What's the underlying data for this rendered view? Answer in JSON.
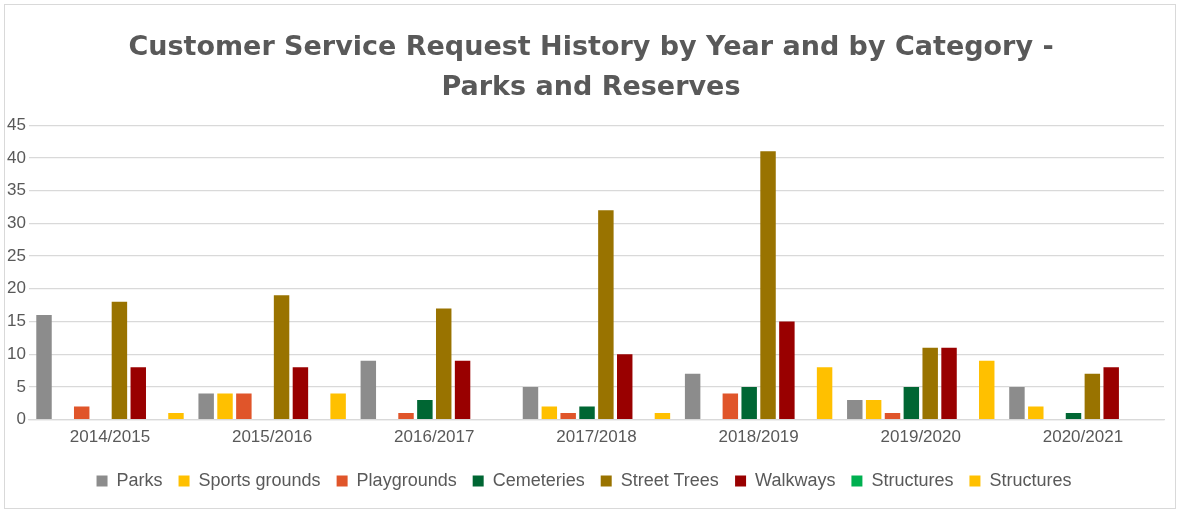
{
  "chart_data": {
    "type": "bar",
    "title": "Customer Service Request History by Year and by Category - Parks and Reserves",
    "categories": [
      "2014/2015",
      "2015/2016",
      "2016/2017",
      "2017/2018",
      "2018/2019",
      "2019/2020",
      "2020/2021"
    ],
    "series": [
      {
        "name": "Parks",
        "color": "#8c8c8c",
        "values": [
          16,
          4,
          9,
          5,
          7,
          3,
          5
        ]
      },
      {
        "name": "Sports grounds",
        "color": "#ffc000",
        "values": [
          null,
          4,
          null,
          2,
          null,
          3,
          2
        ]
      },
      {
        "name": "Playgrounds",
        "color": "#e0552a",
        "values": [
          2,
          4,
          1,
          1,
          4,
          1,
          null
        ]
      },
      {
        "name": "Cemeteries",
        "color": "#006633",
        "values": [
          null,
          null,
          3,
          2,
          5,
          5,
          1
        ]
      },
      {
        "name": "Street Trees",
        "color": "#997300",
        "values": [
          18,
          19,
          17,
          32,
          41,
          11,
          7
        ]
      },
      {
        "name": "Walkways",
        "color": "#990000",
        "values": [
          8,
          8,
          9,
          10,
          15,
          11,
          8
        ]
      },
      {
        "name": "Structures",
        "color": "#00b050",
        "values": [
          null,
          null,
          null,
          null,
          null,
          null,
          null
        ]
      },
      {
        "name": "Structures",
        "color": "#ffc000",
        "values": [
          1,
          4,
          null,
          1,
          8,
          9,
          null
        ]
      }
    ],
    "ylim": [
      0,
      45
    ],
    "yticks": [
      0,
      5,
      10,
      15,
      20,
      25,
      30,
      35,
      40,
      45
    ],
    "grid": "y",
    "legend": "bottom"
  }
}
